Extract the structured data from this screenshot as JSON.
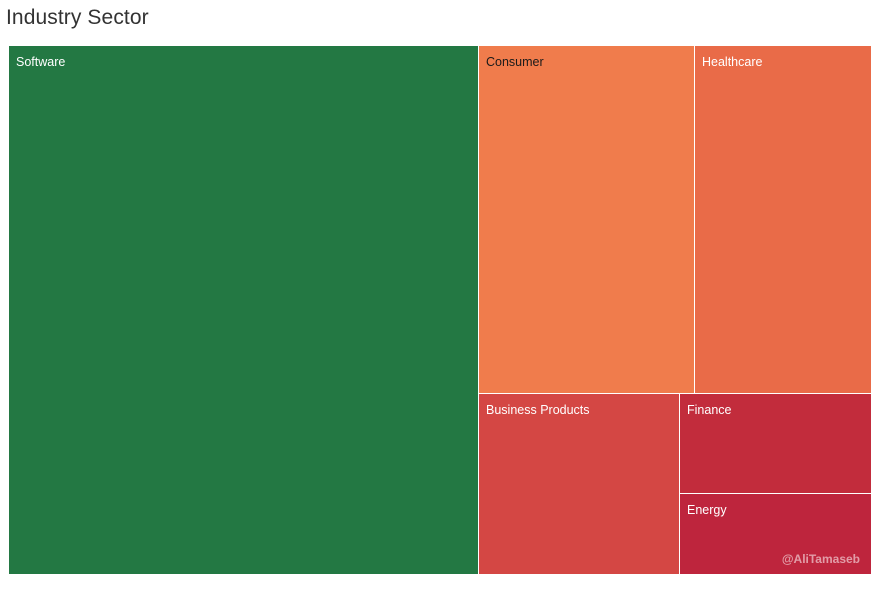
{
  "page": {
    "title": "Industry Sector",
    "watermark": "@AliTamaseb"
  },
  "chart_data": {
    "type": "treemap",
    "title": "Industry Sector",
    "tiles": [
      {
        "label": "Software",
        "share": 0.5453,
        "color": "#237843",
        "text_color": "#ffffff"
      },
      {
        "label": "Consumer",
        "share": 0.1653,
        "color": "#f07c4c",
        "text_color": "#1a1a1a"
      },
      {
        "label": "Healthcare",
        "share": 0.1341,
        "color": "#e96b48",
        "text_color": "#ffffff"
      },
      {
        "label": "Business Products",
        "share": 0.0798,
        "color": "#d44744",
        "text_color": "#ffffff"
      },
      {
        "label": "Finance",
        "share": 0.0421,
        "color": "#c22c3c",
        "text_color": "#ffffff"
      },
      {
        "label": "Energy",
        "share": 0.0334,
        "color": "#be253d",
        "text_color": "#ffffff"
      }
    ]
  }
}
